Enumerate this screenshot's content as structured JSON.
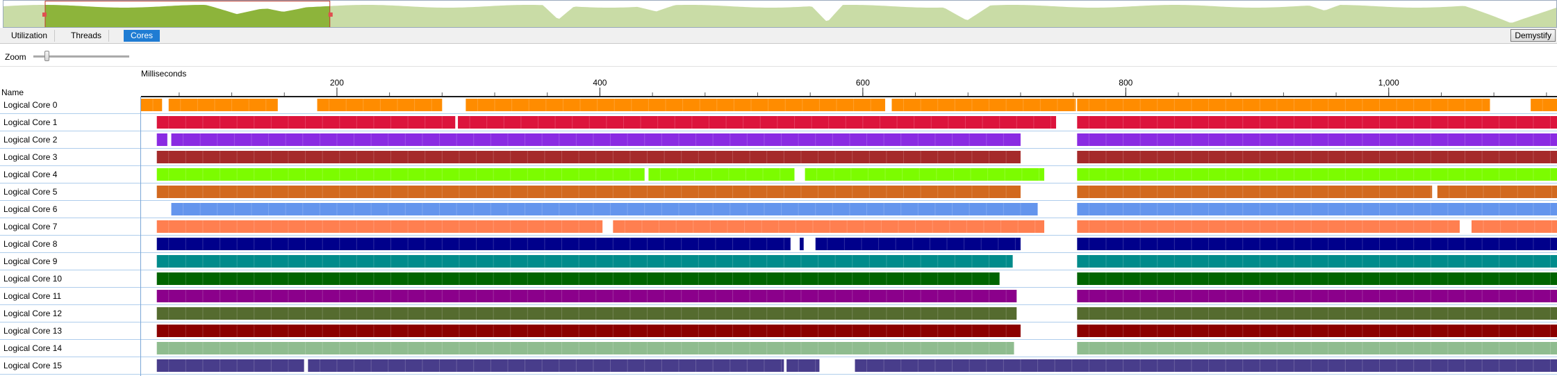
{
  "view_tabs": [
    {
      "label": "Utilization",
      "active": false
    },
    {
      "label": "Threads",
      "active": false
    },
    {
      "label": "Cores",
      "active": true
    }
  ],
  "demystify_label": "Demystify",
  "zoom": {
    "label": "Zoom",
    "level": 0.12
  },
  "columns": {
    "name_header": "Name"
  },
  "ruler": {
    "unit_label": "Milliseconds",
    "range_ms": [
      51,
      1128
    ],
    "major_ticks": [
      {
        "value": 200,
        "label": "200"
      },
      {
        "value": 400,
        "label": "400"
      },
      {
        "value": 600,
        "label": "600"
      },
      {
        "value": 800,
        "label": "800"
      },
      {
        "value": 1000,
        "label": "1,000"
      }
    ],
    "minor_tick_step": 40
  },
  "overview": {
    "selection_fraction": [
      0.0,
      0.21
    ],
    "selected_color": "#8db43b",
    "unselected_color": "#c9dca6"
  },
  "cores": [
    {
      "name": "Logical Core 0",
      "color": "#ff8c00",
      "segments": [
        [
          51,
          67
        ],
        [
          72,
          155
        ],
        [
          185,
          280
        ],
        [
          298,
          617
        ],
        [
          622,
          762
        ],
        [
          763,
          1077
        ],
        [
          1108,
          1128
        ]
      ]
    },
    {
      "name": "Logical Core 1",
      "color": "#dc143c",
      "segments": [
        [
          63,
          290
        ],
        [
          292,
          747
        ],
        [
          763,
          1128
        ]
      ]
    },
    {
      "name": "Logical Core 2",
      "color": "#8a2be2",
      "segments": [
        [
          63,
          71
        ],
        [
          74,
          720
        ],
        [
          763,
          1128
        ]
      ]
    },
    {
      "name": "Logical Core 3",
      "color": "#a52a2a",
      "segments": [
        [
          63,
          720
        ],
        [
          763,
          1128
        ]
      ]
    },
    {
      "name": "Logical Core 4",
      "color": "#7cfc00",
      "segments": [
        [
          63,
          434
        ],
        [
          437,
          548
        ],
        [
          556,
          738
        ],
        [
          763,
          1128
        ]
      ]
    },
    {
      "name": "Logical Core 5",
      "color": "#d2691e",
      "segments": [
        [
          63,
          720
        ],
        [
          763,
          1033
        ],
        [
          1037,
          1128
        ]
      ]
    },
    {
      "name": "Logical Core 6",
      "color": "#6495ed",
      "segments": [
        [
          74,
          733
        ],
        [
          763,
          1128
        ]
      ]
    },
    {
      "name": "Logical Core 7",
      "color": "#ff7f50",
      "segments": [
        [
          63,
          402
        ],
        [
          410,
          738
        ],
        [
          763,
          1054
        ],
        [
          1063,
          1128
        ]
      ]
    },
    {
      "name": "Logical Core 8",
      "color": "#00008b",
      "segments": [
        [
          63,
          545
        ],
        [
          552,
          555
        ],
        [
          564,
          720
        ],
        [
          763,
          1128
        ]
      ]
    },
    {
      "name": "Logical Core 9",
      "color": "#008b8b",
      "segments": [
        [
          63,
          714
        ],
        [
          763,
          1128
        ]
      ]
    },
    {
      "name": "Logical Core 10",
      "color": "#006400",
      "segments": [
        [
          63,
          704
        ],
        [
          763,
          1128
        ]
      ]
    },
    {
      "name": "Logical Core 11",
      "color": "#8b008b",
      "segments": [
        [
          63,
          717
        ],
        [
          763,
          1128
        ]
      ]
    },
    {
      "name": "Logical Core 12",
      "color": "#556b2f",
      "segments": [
        [
          63,
          717
        ],
        [
          763,
          1128
        ]
      ]
    },
    {
      "name": "Logical Core 13",
      "color": "#8b0000",
      "segments": [
        [
          63,
          720
        ],
        [
          763,
          1128
        ]
      ]
    },
    {
      "name": "Logical Core 14",
      "color": "#8fbc8f",
      "segments": [
        [
          63,
          715
        ],
        [
          763,
          1128
        ]
      ]
    },
    {
      "name": "Logical Core 15",
      "color": "#483d8b",
      "segments": [
        [
          63,
          175
        ],
        [
          178,
          540
        ],
        [
          542,
          567
        ],
        [
          594,
          1128
        ]
      ]
    }
  ]
}
